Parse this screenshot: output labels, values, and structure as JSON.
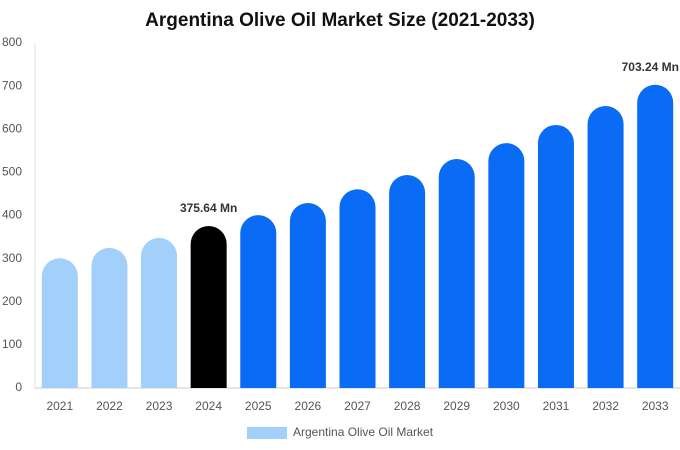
{
  "chart_data": {
    "type": "bar",
    "title": "Argentina Olive Oil Market Size (2021-2033)",
    "categories": [
      "2021",
      "2022",
      "2023",
      "2024",
      "2025",
      "2026",
      "2027",
      "2028",
      "2029",
      "2030",
      "2031",
      "2032",
      "2033"
    ],
    "series": [
      {
        "name": "Argentina Olive Oil Market",
        "color": "#a3cffb",
        "values": [
          301,
          325,
          348,
          375.64,
          401,
          429,
          461,
          494,
          531,
          568,
          610,
          654,
          703.24
        ],
        "value_labels": [
          null,
          null,
          null,
          "375.64 Mn",
          null,
          null,
          null,
          null,
          null,
          null,
          null,
          null,
          "703.24 Mn"
        ],
        "colors": [
          "#a3cffb",
          "#a3cffb",
          "#a3cffb",
          "#000000",
          "#0a6cf5",
          "#0a6cf5",
          "#0a6cf5",
          "#0a6cf5",
          "#0a6cf5",
          "#0a6cf5",
          "#0a6cf5",
          "#0a6cf5",
          "#0a6cf5"
        ]
      }
    ],
    "ylim": [
      0,
      800
    ],
    "yticks": [
      0,
      100,
      200,
      300,
      400,
      500,
      600,
      700,
      800
    ],
    "grid": false
  }
}
